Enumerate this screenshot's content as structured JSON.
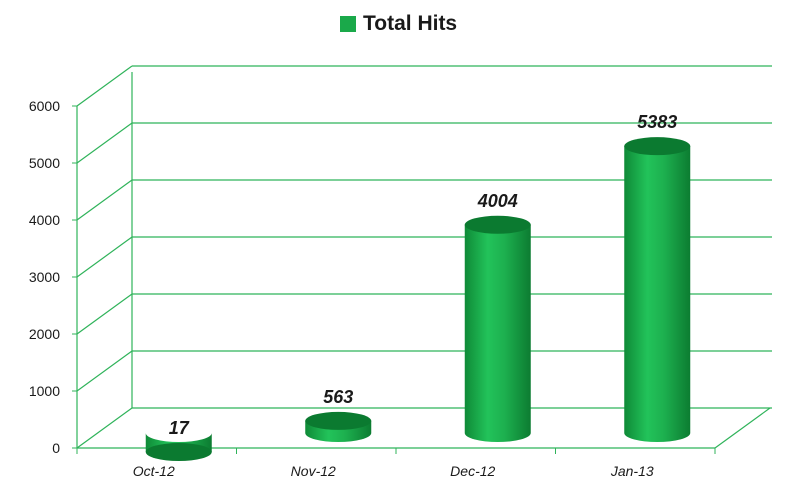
{
  "chart_data": {
    "type": "bar",
    "style": "3d-cylinder",
    "categories": [
      "Oct-12",
      "Nov-12",
      "Dec-12",
      "Jan-13"
    ],
    "series": [
      {
        "name": "Total Hits",
        "values": [
          17,
          563,
          4004,
          5383
        ]
      }
    ],
    "data_labels": [
      "17",
      "563",
      "4004",
      "5383"
    ],
    "ylim": [
      0,
      6000
    ],
    "yticks": [
      "0",
      "1000",
      "2000",
      "3000",
      "4000",
      "5000",
      "6000"
    ],
    "grid": true,
    "legend_position": "top",
    "colors": {
      "bar": "#1aa94a",
      "bar_dark": "#0b7a30",
      "grid": "#2fb35a",
      "legend": "#1aa94a"
    }
  }
}
